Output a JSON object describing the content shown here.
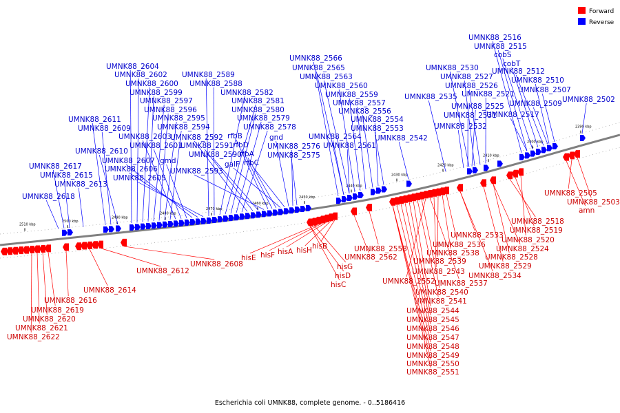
{
  "caption": "Escherichia coli UMNK88, complete genome. - 0..5186416",
  "legend": [
    {
      "label": "Forward",
      "color": "#ff0000"
    },
    {
      "label": "Reverse",
      "color": "#0000ff"
    }
  ],
  "colors": {
    "forward_feature": "#ff0000",
    "reverse_feature": "#0000ff",
    "forward_label": "#cc0000",
    "reverse_label": "#0000cc",
    "backbone": "#808080"
  },
  "tick_labels": [
    "2390 kbp",
    "2400 kbp",
    "2410 kbp",
    "2420 kbp",
    "2430 kbp",
    "2440 kbp",
    "2450 kbp",
    "2460 kbp",
    "2470 kbp",
    "2480 kbp",
    "2490 kbp",
    "2500 kbp",
    "2510 kbp"
  ],
  "reverse_labels": [
    "UMNK88_2604",
    "UMNK88_2602",
    "UMNK88_2600",
    "UMNK88_2599",
    "UMNK88_2597",
    "UMNK88_2596",
    "UMNK88_2595",
    "UMNK88_2594",
    "UMNK88_2603",
    "UMNK88_2601",
    "gmd",
    "UMNK88_2607",
    "UMNK88_2606",
    "UMNK88_2605",
    "UMNK88_2611",
    "UMNK88_2609",
    "UMNK88_2610",
    "UMNK88_2617",
    "UMNK88_2615",
    "UMNK88_2613",
    "UMNK88_2618",
    "UMNK88_2589",
    "UMNK88_2588",
    "UMNK88_2582",
    "UMNK88_2581",
    "UMNK88_2580",
    "UMNK88_2579",
    "UMNK88_2578",
    "UMNK88_2592",
    "UMNK88_2591",
    "UMNK88_2590",
    "UMNK88_2593",
    "rfbB",
    "rfbD",
    "rfbA",
    "galF",
    "rfbC",
    "gnd",
    "UMNK88_2576",
    "UMNK88_2575",
    "UMNK88_2566",
    "UMNK88_2565",
    "UMNK88_2563",
    "UMNK88_2560",
    "UMNK88_2559",
    "UMNK88_2557",
    "UMNK88_2556",
    "UMNK88_2554",
    "UMNK88_2553",
    "UMNK88_2564",
    "UMNK88_2561",
    "UMNK88_2542",
    "UMNK88_2530",
    "UMNK88_2527",
    "UMNK88_2526",
    "UMNK88_2535",
    "UMNK88_2521",
    "UMNK88_2525",
    "UMNK88_2531",
    "UMNK88_2532",
    "UMNK88_2516",
    "UMNK88_2515",
    "cobS",
    "cobT",
    "UMNK88_2512",
    "UMNK88_2510",
    "UMNK88_2507",
    "UMNK88_2509",
    "UMNK88_2517",
    "UMNK88_2502"
  ],
  "forward_labels": [
    "UMNK88_2505",
    "UMNK88_2503",
    "amn",
    "UMNK88_2518",
    "UMNK88_2519",
    "UMNK88_2520",
    "UMNK88_2524",
    "UMNK88_2528",
    "UMNK88_2529",
    "UMNK88_2533",
    "UMNK88_2536",
    "UMNK88_2538",
    "UMNK88_2539",
    "UMNK88_2534",
    "UMNK88_2543",
    "UMNK88_2537",
    "UMNK88_2552",
    "UMNK88_2540",
    "UMNK88_2541",
    "UMNK88_2544",
    "UMNK88_2545",
    "UMNK88_2546",
    "UMNK88_2547",
    "UMNK88_2548",
    "UMNK88_2549",
    "UMNK88_2550",
    "UMNK88_2551",
    "UMNK88_2558",
    "UMNK88_2562",
    "hisB",
    "hisH",
    "hisA",
    "hisF",
    "hisE",
    "hisG",
    "hisD",
    "hisC",
    "UMNK88_2608",
    "UMNK88_2612",
    "UMNK88_2614",
    "UMNK88_2616",
    "UMNK88_2619",
    "UMNK88_2620",
    "UMNK88_2621",
    "UMNK88_2622"
  ]
}
